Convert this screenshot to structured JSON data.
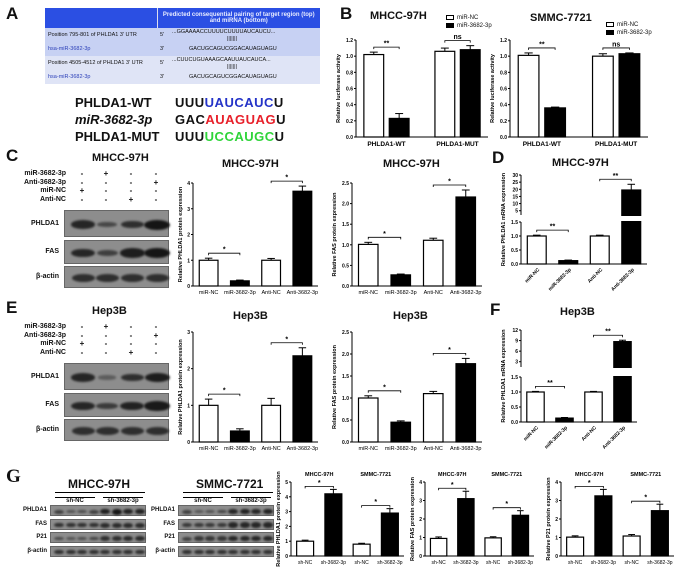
{
  "panels": {
    "A": "A",
    "B": "B",
    "C": "C",
    "D": "D",
    "E": "E",
    "F": "F",
    "G": "G"
  },
  "panel_a": {
    "table_header": "Predicted consequential pairing of target region (top) and miRNA (bottom)",
    "rows": [
      {
        "label": "Position 795-801 of PHLDA1 3' UTR",
        "end": "5'",
        "seq": "...GGAAAACCUUUUCUUUUAUCAUCU...",
        "pair": "|||||||"
      },
      {
        "label": "hsa-miR-3682-3p",
        "end": "3'",
        "seq": "GACUGCAGUCGGACAUAGUAGU"
      },
      {
        "label": "Position 4505-4512 of PHLDA1 3' UTR",
        "end": "5'",
        "seq": "...CUUCUGUAAAGCAAUUAUCAUCA...",
        "pair": "|||||||"
      },
      {
        "label": "hsa-miR-3682-3p",
        "end": "3'",
        "seq": "GACUGCAGUCGGACAUAGUAGU"
      }
    ],
    "sequences": [
      {
        "name": "PHLDA1-WT",
        "prefix": "UUU",
        "core": "UAUCAUC",
        "suffix": "U",
        "core_color": "#2433c8"
      },
      {
        "name": "miR-3682-3p",
        "prefix": "GAC",
        "core": "AUAGUAG",
        "suffix": "U",
        "core_color": "#e8202a"
      },
      {
        "name": "PHLDA1-MUT",
        "prefix": "UUU",
        "core": "UCCAUGC",
        "suffix": "U",
        "core_color": "#2fd43a"
      }
    ]
  },
  "blot_c": {
    "title": "MHCC-97H",
    "treatments": [
      {
        "name": "miR-3682-3p",
        "signs": [
          "-",
          "+",
          "-",
          "-"
        ]
      },
      {
        "name": "Anti-3682-3p",
        "signs": [
          "-",
          "-",
          "-",
          "+"
        ]
      },
      {
        "name": "miR-NC",
        "signs": [
          "+",
          "-",
          "-",
          "-"
        ]
      },
      {
        "name": "Anti-NC",
        "signs": [
          "-",
          "-",
          "+",
          "-"
        ]
      }
    ],
    "rows": [
      {
        "name": "PHLDA1",
        "band_intensity": [
          0.8,
          0.4,
          0.7,
          1.0
        ]
      },
      {
        "name": "FAS",
        "band_intensity": [
          0.8,
          0.5,
          0.9,
          1.0
        ]
      },
      {
        "name": "β-actin",
        "band_intensity": [
          0.7,
          0.7,
          0.7,
          0.7
        ]
      }
    ]
  },
  "blot_e": {
    "title": "Hep3B",
    "treatments": [
      {
        "name": "miR-3682-3p",
        "signs": [
          "-",
          "+",
          "-",
          "-"
        ]
      },
      {
        "name": "Anti-3682-3p",
        "signs": [
          "-",
          "-",
          "-",
          "+"
        ]
      },
      {
        "name": "miR-NC",
        "signs": [
          "+",
          "-",
          "-",
          "-"
        ]
      },
      {
        "name": "Anti-NC",
        "signs": [
          "-",
          "-",
          "+",
          "-"
        ]
      }
    ],
    "rows": [
      {
        "name": "PHLDA1",
        "band_intensity": [
          0.8,
          0.15,
          0.7,
          0.9
        ]
      },
      {
        "name": "FAS",
        "band_intensity": [
          0.8,
          0.55,
          0.85,
          0.95
        ]
      },
      {
        "name": "β-actin",
        "band_intensity": [
          0.7,
          0.7,
          0.7,
          0.7
        ]
      }
    ]
  },
  "blot_g": [
    {
      "title": "MHCC-97H",
      "groups": [
        "sh-NC",
        "sh-3682-3p"
      ],
      "rows": [
        {
          "name": "PHLDA1",
          "band_intensity": [
            0.5,
            0.3,
            0.35,
            0.5,
            0.9,
            1,
            0.85,
            0.85
          ]
        },
        {
          "name": "FAS",
          "band_intensity": [
            0.7,
            0.7,
            0.7,
            0.7,
            0.75,
            0.75,
            0.75,
            0.75
          ]
        },
        {
          "name": "P21",
          "band_intensity": [
            0.4,
            0.3,
            0.35,
            0.45,
            0.7,
            0.7,
            0.75,
            0.75
          ]
        },
        {
          "name": "β-actin",
          "band_intensity": [
            0.7,
            0.7,
            0.7,
            0.7,
            0.7,
            0.7,
            0.7,
            0.7
          ]
        }
      ]
    },
    {
      "title": "SMMC-7721",
      "groups": [
        "sh-NC",
        "sh-3682-3p"
      ],
      "rows": [
        {
          "name": "PHLDA1",
          "band_intensity": [
            0.5,
            0.25,
            0.3,
            0.45,
            0.8,
            0.85,
            0.8,
            0.85
          ]
        },
        {
          "name": "FAS",
          "band_intensity": [
            0.6,
            0.6,
            0.6,
            0.6,
            0.8,
            0.8,
            0.8,
            0.8
          ]
        },
        {
          "name": "P21",
          "band_intensity": [
            0.5,
            0.6,
            0.6,
            0.6,
            0.8,
            0.8,
            0.8,
            0.8
          ]
        },
        {
          "name": "β-actin",
          "band_intensity": [
            0.7,
            0.7,
            0.7,
            0.7,
            0.7,
            0.7,
            0.7,
            0.7
          ]
        }
      ]
    }
  ],
  "chart_data": [
    {
      "id": "B1",
      "type": "bar",
      "title": "MHCC-97H",
      "ylabel": "Relative luciferase activity",
      "categories": [
        "PHLDA1-WT",
        "PHLDA1-MUT"
      ],
      "series": [
        {
          "name": "miR-NC",
          "values": [
            1.02,
            1.06
          ],
          "errors": [
            0.03,
            0.04
          ],
          "color": "#ffffff"
        },
        {
          "name": "miR-3682-3p",
          "values": [
            0.23,
            1.08
          ],
          "errors": [
            0.06,
            0.05
          ],
          "color": "#000000"
        }
      ],
      "ylim": [
        0,
        1.2
      ],
      "yticks": [
        "0.0",
        "0.2",
        "0.4",
        "0.6",
        "0.8",
        "1.0",
        "1.2"
      ],
      "legend": "top-right",
      "annotations": [
        {
          "from": 0,
          "to": 1,
          "label": "**"
        },
        {
          "from": 2,
          "to": 3,
          "label": "ns"
        }
      ]
    },
    {
      "id": "B2",
      "type": "bar",
      "title": "SMMC-7721",
      "ylabel": "Relative luciferase activity",
      "categories": [
        "PHLDA1-WT",
        "PHLDA1-MUT"
      ],
      "series": [
        {
          "name": "miR-NC",
          "values": [
            1.01,
            1.0
          ],
          "errors": [
            0.03,
            0.03
          ],
          "color": "#ffffff"
        },
        {
          "name": "miR-3682-3p",
          "values": [
            0.36,
            1.03
          ],
          "errors": [
            0.01,
            0.01
          ],
          "color": "#000000"
        }
      ],
      "ylim": [
        0,
        1.2
      ],
      "yticks": [
        "0.0",
        "0.2",
        "0.4",
        "0.6",
        "0.8",
        "1.0",
        "1.2"
      ],
      "legend": "top-right",
      "annotations": [
        {
          "from": 0,
          "to": 1,
          "label": "**"
        },
        {
          "from": 2,
          "to": 3,
          "label": "ns"
        }
      ]
    },
    {
      "id": "C1",
      "type": "bar",
      "title": "MHCC-97H",
      "ylabel": "Relative PHLDA1 protein expression",
      "categories": [
        "miR-NC",
        "miR-3682-3p",
        "Anti-NC",
        "Anti-3682-3p"
      ],
      "values": [
        1.0,
        0.2,
        1.0,
        3.68
      ],
      "errors": [
        0.08,
        0.03,
        0.07,
        0.2
      ],
      "colors": [
        "#ffffff",
        "#000000",
        "#ffffff",
        "#000000"
      ],
      "ylim": [
        0,
        4
      ],
      "yticks": [
        "0",
        "1",
        "2",
        "3",
        "4"
      ],
      "annotations": [
        {
          "from": 0,
          "to": 1,
          "label": "*"
        },
        {
          "from": 2,
          "to": 3,
          "label": "*"
        }
      ]
    },
    {
      "id": "C2",
      "type": "bar",
      "title": "MHCC-97H",
      "ylabel": "Relative FAS protein expression",
      "categories": [
        "miR-NC",
        "miR-3682-3p",
        "Anti-NC",
        "Anti-3682-3p"
      ],
      "values": [
        1.01,
        0.27,
        1.11,
        2.16
      ],
      "errors": [
        0.05,
        0.02,
        0.05,
        0.17
      ],
      "colors": [
        "#ffffff",
        "#000000",
        "#ffffff",
        "#000000"
      ],
      "ylim": [
        0,
        2.5
      ],
      "yticks": [
        "0.0",
        "0.5",
        "1.0",
        "1.5",
        "2.0",
        "2.5"
      ],
      "annotations": [
        {
          "from": 0,
          "to": 1,
          "label": "*"
        },
        {
          "from": 2,
          "to": 3,
          "label": "*"
        }
      ]
    },
    {
      "id": "D",
      "type": "bar",
      "title": "MHCC-97H",
      "ylabel": "Relative PHLDA1 mRNA expression",
      "categories": [
        "miR-NC",
        "miR-3682-3p",
        "Anti-NC",
        "Anti-3682-3p"
      ],
      "values": [
        1.0,
        0.12,
        1.0,
        19.5
      ],
      "errors": [
        0.03,
        0.02,
        0.03,
        4.0
      ],
      "colors": [
        "#ffffff",
        "#000000",
        "#ffffff",
        "#000000"
      ],
      "ylim": [
        0,
        30
      ],
      "axis_break": {
        "lower": [
          0,
          1.5
        ],
        "upper": [
          2,
          30
        ]
      },
      "yticks": [
        "0.0",
        "0.5",
        "1.0",
        "1.5",
        "5",
        "10",
        "15",
        "20",
        "25",
        "30"
      ],
      "annotations": [
        {
          "from": 0,
          "to": 1,
          "label": "**"
        },
        {
          "from": 2,
          "to": 3,
          "label": "**"
        }
      ]
    },
    {
      "id": "E1",
      "type": "bar",
      "title": "Hep3B",
      "ylabel": "Relative PHLDA1 protein expression",
      "categories": [
        "miR-NC",
        "miR-3682-3p",
        "Anti-NC",
        "Anti-3682-3p"
      ],
      "values": [
        1.0,
        0.3,
        1.0,
        2.35
      ],
      "errors": [
        0.17,
        0.06,
        0.19,
        0.22
      ],
      "colors": [
        "#ffffff",
        "#000000",
        "#ffffff",
        "#000000"
      ],
      "ylim": [
        0,
        3
      ],
      "yticks": [
        "0",
        "1",
        "2",
        "3"
      ],
      "annotations": [
        {
          "from": 0,
          "to": 1,
          "label": "*"
        },
        {
          "from": 2,
          "to": 3,
          "label": "*"
        }
      ]
    },
    {
      "id": "E2",
      "type": "bar",
      "title": "Hep3B",
      "ylabel": "Relative FAS protein expression",
      "categories": [
        "miR-NC",
        "miR-3682-3p",
        "Anti-NC",
        "Anti-3682-3p"
      ],
      "values": [
        1.0,
        0.45,
        1.1,
        1.78
      ],
      "errors": [
        0.05,
        0.03,
        0.05,
        0.12
      ],
      "colors": [
        "#ffffff",
        "#000000",
        "#ffffff",
        "#000000"
      ],
      "ylim": [
        0,
        2.5
      ],
      "yticks": [
        "0.0",
        "0.5",
        "1.0",
        "1.5",
        "2.0",
        "2.5"
      ],
      "annotations": [
        {
          "from": 0,
          "to": 1,
          "label": "*"
        },
        {
          "from": 2,
          "to": 3,
          "label": "*"
        }
      ]
    },
    {
      "id": "F",
      "type": "bar",
      "title": "Hep3B",
      "ylabel": "Relative PHLDA1 mRNA expression",
      "categories": [
        "miR-NC",
        "miR-3682-3p",
        "Anti-NC",
        "Anti-3682-3p"
      ],
      "values": [
        1.0,
        0.13,
        1.0,
        8.7
      ],
      "errors": [
        0.02,
        0.02,
        0.02,
        0.4
      ],
      "colors": [
        "#ffffff",
        "#000000",
        "#ffffff",
        "#000000"
      ],
      "ylim": [
        0,
        12
      ],
      "axis_break": {
        "lower": [
          0,
          1.5
        ],
        "upper": [
          1.5,
          12
        ]
      },
      "yticks": [
        "0.0",
        "0.5",
        "1.0",
        "1.5",
        "3",
        "6",
        "9",
        "12"
      ],
      "annotations": [
        {
          "from": 0,
          "to": 1,
          "label": "**"
        },
        {
          "from": 2,
          "to": 3,
          "label": "**"
        }
      ]
    },
    {
      "id": "G1",
      "type": "bar",
      "ylabel": "Relative PHLDA1 protein expression",
      "group_labels": [
        "MHCC-97H",
        "SMMC-7721"
      ],
      "categories": [
        "sh-NC",
        "sh-3682-3p",
        "sh-NC",
        "sh-3682-3p"
      ],
      "values": [
        1.0,
        4.2,
        0.8,
        2.9
      ],
      "errors": [
        0.07,
        0.3,
        0.06,
        0.3
      ],
      "colors": [
        "#ffffff",
        "#000000",
        "#ffffff",
        "#000000"
      ],
      "ylim": [
        0,
        5
      ],
      "yticks": [
        "0",
        "1",
        "2",
        "3",
        "4",
        "5"
      ],
      "annotations": [
        {
          "from": 0,
          "to": 1,
          "label": "*"
        },
        {
          "from": 2,
          "to": 3,
          "label": "*"
        }
      ]
    },
    {
      "id": "G2",
      "type": "bar",
      "ylabel": "Relative FAS protein expression",
      "group_labels": [
        "MHCC-97H",
        "SMMC-7721"
      ],
      "categories": [
        "sh-NC",
        "sh-3682-3p",
        "sh-NC",
        "sh-3682-3p"
      ],
      "values": [
        0.95,
        3.1,
        0.98,
        2.2
      ],
      "errors": [
        0.08,
        0.4,
        0.06,
        0.25
      ],
      "colors": [
        "#ffffff",
        "#000000",
        "#ffffff",
        "#000000"
      ],
      "ylim": [
        0,
        4
      ],
      "yticks": [
        "0",
        "1",
        "2",
        "3",
        "4"
      ],
      "annotations": [
        {
          "from": 0,
          "to": 1,
          "label": "*"
        },
        {
          "from": 2,
          "to": 3,
          "label": "*"
        }
      ]
    },
    {
      "id": "G3",
      "type": "bar",
      "ylabel": "Relative P21 protein expression",
      "group_labels": [
        "MHCC-97H",
        "SMMC-7721"
      ],
      "categories": [
        "sh-NC",
        "sh-3682-3p",
        "sh-NC",
        "sh-3682-3p"
      ],
      "values": [
        1.02,
        3.25,
        1.08,
        2.45
      ],
      "errors": [
        0.07,
        0.35,
        0.08,
        0.35
      ],
      "colors": [
        "#ffffff",
        "#000000",
        "#ffffff",
        "#000000"
      ],
      "ylim": [
        0,
        4
      ],
      "yticks": [
        "0",
        "1",
        "2",
        "3",
        "4"
      ],
      "annotations": [
        {
          "from": 0,
          "to": 1,
          "label": "*"
        },
        {
          "from": 2,
          "to": 3,
          "label": "*"
        }
      ]
    }
  ]
}
